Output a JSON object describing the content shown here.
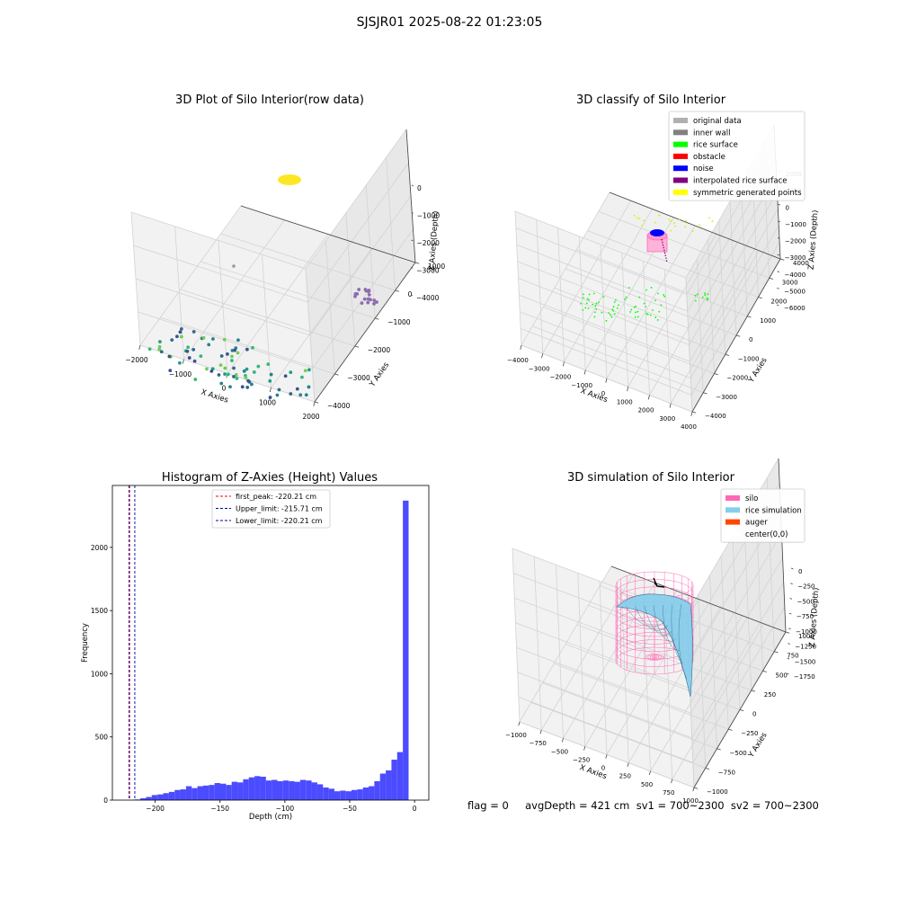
{
  "figure": {
    "suptitle": "SJSJR01 2025-08-22 01:23:05",
    "footer": "flag = 0     avgDepth = 421 cm  sv1 = 700~2300  sv2 = 700~2300"
  },
  "colors": {
    "histogram_bars": "#4b4bff",
    "first_peak_line": "#ff0000",
    "limit_lines": "#0000aa",
    "silo": "#ff69b4",
    "rice_simulation": "#87ceeb",
    "auger": "#ff4500"
  },
  "chart_data": [
    {
      "type": "scatter",
      "title": "3D Plot of Silo Interior(row data)",
      "xlabel": "X Axies",
      "ylabel": "Y Axies",
      "zlabel": "Z Axies (Depth)",
      "x_ticks": [
        "−2000",
        "−1000",
        "0",
        "1000",
        "2000"
      ],
      "y_ticks": [
        "−4000",
        "−3000",
        "−2000",
        "−1000",
        "0",
        "1000"
      ],
      "z_ticks": [
        "−4000",
        "−3000",
        "−2000",
        "−1000",
        "0"
      ],
      "projection": "3d",
      "grid": true,
      "colormap": "viridis"
    },
    {
      "type": "scatter",
      "title": "3D classify of Silo Interior",
      "xlabel": "X Axies",
      "ylabel": "Y Axies",
      "zlabel": "Z Axies (Depth)",
      "x_ticks": [
        "−4000",
        "−3000",
        "−2000",
        "−1000",
        "0",
        "1000",
        "2000",
        "3000",
        "4000"
      ],
      "y_ticks": [
        "−4000",
        "−3000",
        "−2000",
        "−1000",
        "0",
        "1000",
        "2000",
        "3000",
        "4000"
      ],
      "z_ticks": [
        "−6000",
        "−5000",
        "−4000",
        "−3000",
        "−2000",
        "−1000",
        "0",
        "1000",
        "2000"
      ],
      "legend": {
        "placement": "upper-right",
        "entries": [
          {
            "label": "original data",
            "color": "#b0b0b0"
          },
          {
            "label": "inner wall",
            "color": "#808080"
          },
          {
            "label": "rice surface",
            "color": "#00ff00"
          },
          {
            "label": "obstacle",
            "color": "#ff0000"
          },
          {
            "label": "noise",
            "color": "#0000ff"
          },
          {
            "label": "interpolated rice surface",
            "color": "#800080"
          },
          {
            "label": "symmetric generated points",
            "color": "#ffff00"
          }
        ]
      },
      "projection": "3d",
      "grid": true
    },
    {
      "type": "bar",
      "title": "Histogram of Z-Axies (Height) Values",
      "xlabel": "Depth (cm)",
      "ylabel": "Frequency",
      "xlim": [
        -233,
        11
      ],
      "ylim": [
        0,
        2490
      ],
      "x_ticks": [
        -200,
        -150,
        -100,
        -50,
        0
      ],
      "y_ticks": [
        0,
        500,
        1000,
        1500,
        2000
      ],
      "bin_width": 4.4,
      "bin_start": -220.21,
      "bin_counts": [
        2,
        5,
        15,
        25,
        40,
        45,
        55,
        65,
        80,
        85,
        110,
        95,
        110,
        115,
        120,
        135,
        130,
        120,
        145,
        140,
        165,
        180,
        190,
        185,
        155,
        160,
        150,
        155,
        150,
        145,
        160,
        155,
        140,
        125,
        100,
        90,
        70,
        75,
        70,
        80,
        85,
        100,
        110,
        150,
        210,
        235,
        320,
        380,
        2370
      ],
      "lines": [
        {
          "label": "first_peak: -220.21 cm",
          "x": -220.21,
          "color": "#ff0000"
        },
        {
          "label": "Upper_limit: -215.71 cm",
          "x": -215.71,
          "color": "#0000aa"
        },
        {
          "label": "Lower_limit: -220.21 cm",
          "x": -220.21,
          "color": "#0000aa"
        }
      ],
      "grid": false,
      "legend": {
        "placement": "upper-center"
      }
    },
    {
      "type": "surface",
      "title": "3D simulation of Silo Interior",
      "xlabel": "X Axies",
      "ylabel": "Y Axies",
      "zlabel": "Z Axies (Depth)",
      "x_ticks": [
        "−1000",
        "−750",
        "−500",
        "−250",
        "0",
        "250",
        "500",
        "750",
        "1000"
      ],
      "y_ticks": [
        "−1000",
        "−750",
        "−500",
        "−250",
        "0",
        "250",
        "500",
        "750",
        "1000"
      ],
      "z_ticks": [
        "−1750",
        "−1500",
        "−1250",
        "−1000",
        "−750",
        "−500",
        "−250",
        "0"
      ],
      "legend": {
        "placement": "upper-right",
        "entries": [
          {
            "label": "silo",
            "color": "#ff69b4"
          },
          {
            "label": "rice simulation",
            "color": "#87ceeb"
          },
          {
            "label": "auger",
            "color": "#ff4500"
          },
          {
            "label": "center(0,0)",
            "color": "#ffffff"
          }
        ]
      },
      "projection": "3d",
      "grid": true
    }
  ]
}
